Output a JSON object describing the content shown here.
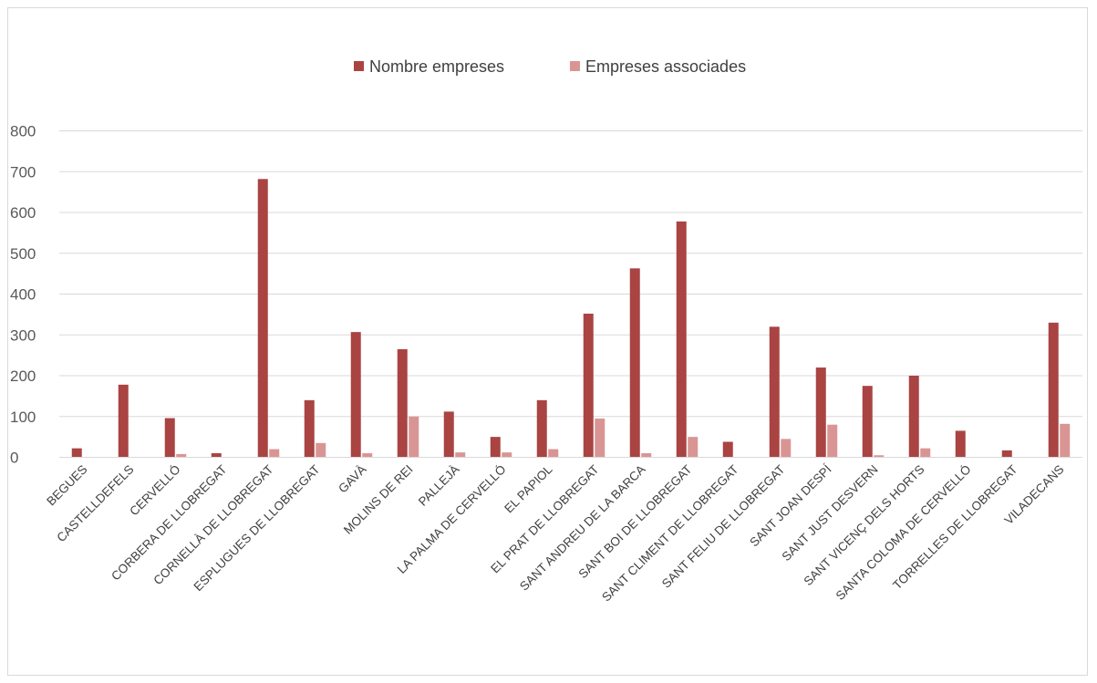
{
  "chart_data": {
    "type": "bar",
    "title": "",
    "xlabel": "",
    "ylabel": "",
    "ylim": [
      0,
      800
    ],
    "yticks": [
      0,
      100,
      200,
      300,
      400,
      500,
      600,
      700,
      800
    ],
    "grid": true,
    "legend_position": "top",
    "categories": [
      "BEGUES",
      "CASTELLDEFELS",
      "CERVELLÓ",
      "CORBERA DE LLOBREGAT",
      "CORNELLÀ DE LLOBREGAT",
      "ESPLUGUES DE LLOBREGAT",
      "GAVÀ",
      "MOLINS DE REI",
      "PALLEJÀ",
      "LA PALMA DE CERVELLÓ",
      "EL PAPIOL",
      "EL PRAT DE LLOBREGAT",
      "SANT ANDREU DE LA BARCA",
      "SANT BOI DE LLOBREGAT",
      "SANT CLIMENT DE LLOBREGAT",
      "SANT FELIU DE LLOBREGAT",
      "SANT JOAN DESPÍ",
      "SANT JUST DESVERN",
      "SANT VICENÇ DELS HORTS",
      "SANTA COLOMA DE CERVELLÓ",
      "TORRELLES DE LLOBREGAT",
      "VILADECANS"
    ],
    "series": [
      {
        "name": "Nombre empreses",
        "color": "#a94442",
        "values": [
          22,
          178,
          96,
          10,
          682,
          140,
          307,
          265,
          112,
          50,
          140,
          352,
          463,
          578,
          38,
          320,
          220,
          175,
          200,
          65,
          17,
          330
        ]
      },
      {
        "name": "Empreses associades",
        "color": "#d99594",
        "values": [
          0,
          0,
          8,
          0,
          20,
          35,
          10,
          100,
          12,
          12,
          20,
          95,
          10,
          50,
          0,
          45,
          80,
          5,
          22,
          0,
          0,
          82
        ]
      }
    ]
  }
}
